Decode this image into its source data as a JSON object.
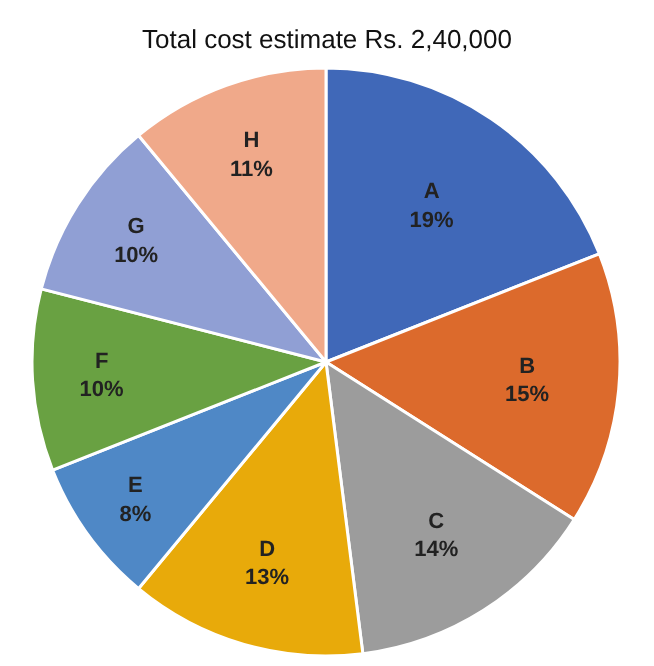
{
  "chart_data": {
    "type": "pie",
    "title": "Total cost estimate Rs. 2,40,000",
    "categories": [
      "A",
      "B",
      "C",
      "D",
      "E",
      "F",
      "G",
      "H"
    ],
    "values": [
      19,
      15,
      14,
      13,
      8,
      10,
      10,
      11
    ],
    "value_labels": [
      "19%",
      "15%",
      "14%",
      "13%",
      "8%",
      "10%",
      "10%",
      "11%"
    ],
    "colors": [
      "#4068b8",
      "#dc6a2c",
      "#9c9c9c",
      "#e8aa0a",
      "#4f88c6",
      "#69a142",
      "#909fd4",
      "#f0a98a"
    ],
    "legend": false
  }
}
